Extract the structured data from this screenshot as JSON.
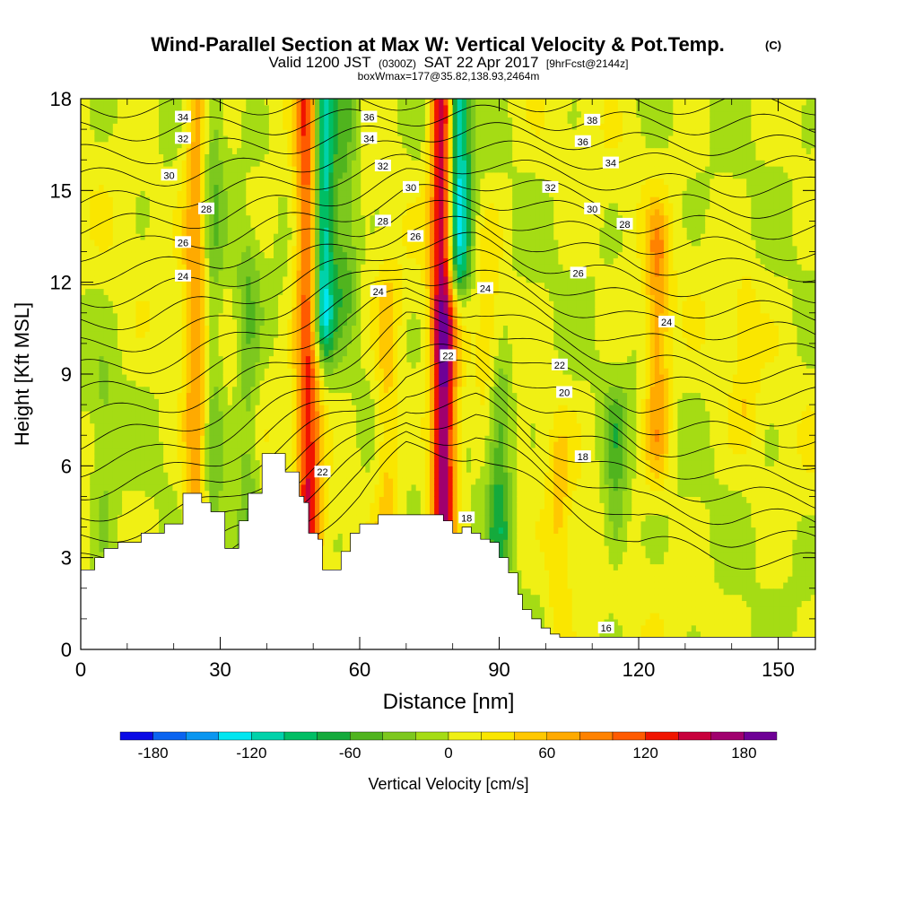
{
  "title": {
    "main": "Wind-Parallel Section at Max W: Vertical Velocity & Pot.Temp.",
    "main_suffix": "(C)",
    "line2_a": "Valid 1200 JST",
    "line2_b": "(0300Z)",
    "line2_c": "SAT 22 Apr 2017",
    "line2_d": "[9hrFcst@2144z]",
    "line3": "boxWmax=177@35.82,138.93,2464m"
  },
  "chart_data": {
    "type": "heatmap",
    "xlabel": "Distance [nm]",
    "ylabel": "Height [Kft MSL]",
    "xlim": [
      0,
      158
    ],
    "ylim": [
      0,
      18
    ],
    "xticks": [
      0,
      30,
      60,
      90,
      120,
      150
    ],
    "yticks": [
      0,
      3,
      6,
      9,
      12,
      15,
      18
    ],
    "colorbar": {
      "label": "Vertical Velocity [cm/s]",
      "ticks": [
        -180,
        -120,
        -60,
        0,
        60,
        120,
        180
      ],
      "levels": [
        -200,
        -180,
        -160,
        -140,
        -120,
        -100,
        -80,
        -60,
        -40,
        -20,
        0,
        20,
        40,
        60,
        80,
        100,
        120,
        140,
        160,
        180,
        200
      ],
      "colors": [
        "#0a0ae6",
        "#0a64f0",
        "#0a96f0",
        "#00e6f0",
        "#00d2aa",
        "#00be64",
        "#14aa3c",
        "#50b41e",
        "#7dc81e",
        "#a5dc14",
        "#f0f014",
        "#fae600",
        "#ffc800",
        "#ffaa00",
        "#ff8200",
        "#ff5a00",
        "#f01400",
        "#c8003c",
        "#a0006e",
        "#6e0096"
      ]
    },
    "updrafts": [
      {
        "x": 25,
        "y": [
          3,
          18
        ],
        "peak": 80
      },
      {
        "x": 49,
        "y": [
          4,
          18
        ],
        "peak": 130
      },
      {
        "x": 78,
        "y": [
          4.5,
          18
        ],
        "peak": 180
      },
      {
        "x": 124,
        "y": [
          7,
          13
        ],
        "peak": 70
      },
      {
        "x": 66,
        "y": [
          4,
          11
        ],
        "peak": 45
      },
      {
        "x": 103,
        "y": [
          1,
          6
        ],
        "peak": 35
      },
      {
        "x": 88,
        "y": [
          9,
          13
        ],
        "peak": 30
      },
      {
        "x": 143,
        "y": [
          8,
          11
        ],
        "peak": 25
      }
    ],
    "downdrafts": [
      {
        "x": 28,
        "y": [
          2,
          18
        ],
        "peak": -45
      },
      {
        "x": 52,
        "y": [
          11,
          18
        ],
        "peak": -140
      },
      {
        "x": 81,
        "y": [
          13,
          18
        ],
        "peak": -150
      },
      {
        "x": 90,
        "y": [
          4,
          8
        ],
        "peak": -70
      },
      {
        "x": 115,
        "y": [
          4,
          7
        ],
        "peak": -50
      },
      {
        "x": 36,
        "y": [
          4,
          12
        ],
        "peak": -40
      },
      {
        "x": 57,
        "y": [
          12,
          18
        ],
        "peak": -50
      },
      {
        "x": 5,
        "y": [
          4,
          8
        ],
        "peak": -25
      }
    ],
    "terrain": {
      "x": [
        0,
        3,
        5,
        8,
        10,
        13,
        15,
        18,
        20,
        22,
        25,
        26,
        28,
        30,
        31,
        34,
        36,
        39,
        42,
        44,
        45,
        47,
        48,
        49,
        50,
        51,
        52,
        54,
        56,
        58,
        60,
        62,
        64,
        66,
        68,
        70,
        72,
        74,
        76,
        78,
        80,
        82,
        84,
        86,
        88,
        90,
        92,
        94,
        95,
        97,
        99,
        101,
        103,
        158
      ],
      "y": [
        2.6,
        3.0,
        3.3,
        3.5,
        3.5,
        3.8,
        3.8,
        4.1,
        4.1,
        5.1,
        5.1,
        4.8,
        4.5,
        4.5,
        3.3,
        4.2,
        5.1,
        6.4,
        6.4,
        5.8,
        5.8,
        5.0,
        4.8,
        3.8,
        3.8,
        3.6,
        2.6,
        2.6,
        3.2,
        3.8,
        4.1,
        4.1,
        4.4,
        4.4,
        4.4,
        4.4,
        4.4,
        4.4,
        4.4,
        4.2,
        3.8,
        4.0,
        3.8,
        3.6,
        3.5,
        3.0,
        2.5,
        1.8,
        1.3,
        1.0,
        0.7,
        0.5,
        0.4,
        0.4
      ]
    },
    "contours": {
      "label": "Pot.Temp.",
      "base": [
        [
          0,
          0.5
        ],
        [
          15,
          1.0
        ],
        [
          30,
          2.0
        ],
        [
          40,
          3.0
        ],
        [
          60,
          5.0
        ],
        [
          70,
          6.5
        ],
        [
          85,
          6.5
        ],
        [
          100,
          5.0
        ],
        [
          120,
          3.5
        ],
        [
          140,
          3.0
        ],
        [
          158,
          2.8
        ]
      ],
      "levels": [
        16,
        17,
        18,
        19,
        20,
        21,
        22,
        23,
        24,
        25,
        26,
        27,
        28,
        29,
        30,
        31,
        32,
        33,
        34,
        35,
        36,
        37,
        38
      ],
      "labels": [
        {
          "text": "34",
          "x": 22,
          "y": 17.4
        },
        {
          "text": "32",
          "x": 22,
          "y": 16.7
        },
        {
          "text": "30",
          "x": 19,
          "y": 15.5
        },
        {
          "text": "28",
          "x": 27,
          "y": 14.4
        },
        {
          "text": "26",
          "x": 22,
          "y": 13.3
        },
        {
          "text": "24",
          "x": 22,
          "y": 12.2
        },
        {
          "text": "36",
          "x": 62,
          "y": 17.4
        },
        {
          "text": "34",
          "x": 62,
          "y": 16.7
        },
        {
          "text": "32",
          "x": 65,
          "y": 15.8
        },
        {
          "text": "30",
          "x": 71,
          "y": 15.1
        },
        {
          "text": "28",
          "x": 65,
          "y": 14.0
        },
        {
          "text": "26",
          "x": 72,
          "y": 13.5
        },
        {
          "text": "24",
          "x": 64,
          "y": 11.7
        },
        {
          "text": "24",
          "x": 87,
          "y": 11.8
        },
        {
          "text": "22",
          "x": 79,
          "y": 9.6
        },
        {
          "text": "22",
          "x": 103,
          "y": 9.3
        },
        {
          "text": "20",
          "x": 104,
          "y": 8.4
        },
        {
          "text": "18",
          "x": 108,
          "y": 6.3
        },
        {
          "text": "18",
          "x": 83,
          "y": 4.3
        },
        {
          "text": "22",
          "x": 52,
          "y": 5.8
        },
        {
          "text": "38",
          "x": 110,
          "y": 17.3
        },
        {
          "text": "36",
          "x": 108,
          "y": 16.6
        },
        {
          "text": "34",
          "x": 114,
          "y": 15.9
        },
        {
          "text": "32",
          "x": 101,
          "y": 15.1
        },
        {
          "text": "30",
          "x": 110,
          "y": 14.4
        },
        {
          "text": "28",
          "x": 117,
          "y": 13.9
        },
        {
          "text": "26",
          "x": 107,
          "y": 12.3
        },
        {
          "text": "24",
          "x": 126,
          "y": 10.7
        },
        {
          "text": "16",
          "x": 113,
          "y": 0.7
        }
      ]
    }
  }
}
